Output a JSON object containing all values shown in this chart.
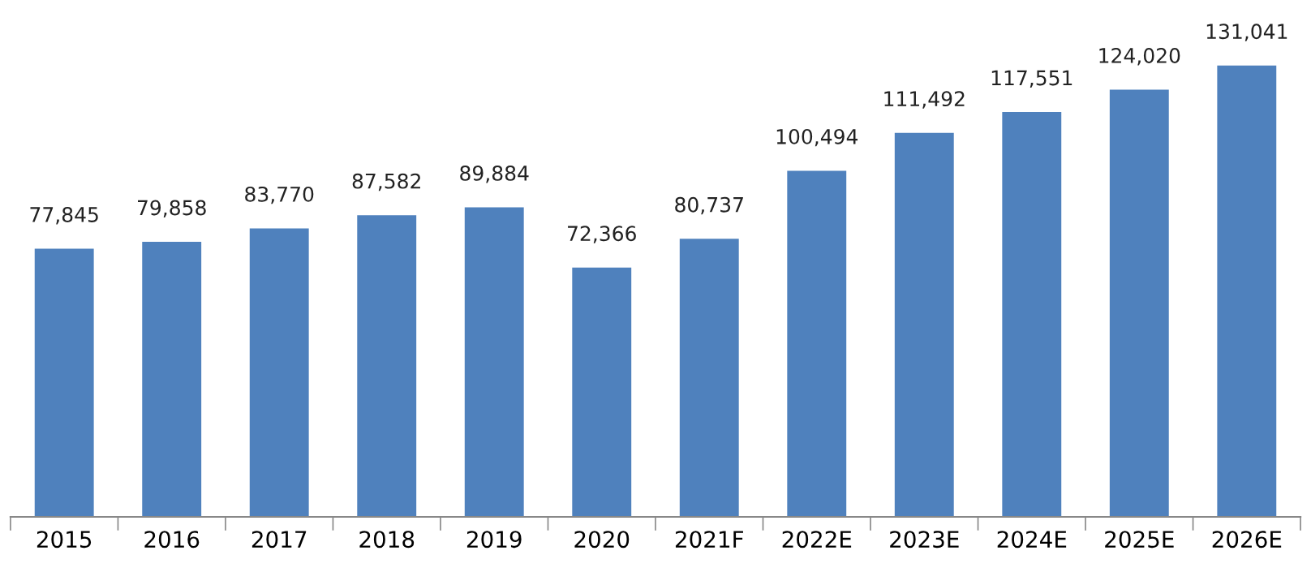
{
  "chart_data": {
    "type": "bar",
    "categories": [
      "2015",
      "2016",
      "2017",
      "2018",
      "2019",
      "2020",
      "2021F",
      "2022E",
      "2023E",
      "2024E",
      "2025E",
      "2026E"
    ],
    "values": [
      77845,
      79858,
      83770,
      87582,
      89884,
      72366,
      80737,
      100494,
      111492,
      117551,
      124020,
      131041
    ],
    "value_labels": [
      "77,845",
      "79,858",
      "83,770",
      "87,582",
      "89,884",
      "72,366",
      "80,737",
      "100,494",
      "111,492",
      "117,551",
      "124,020",
      "131,041"
    ],
    "color": "#4f81bd",
    "grid": false,
    "legend": false
  }
}
